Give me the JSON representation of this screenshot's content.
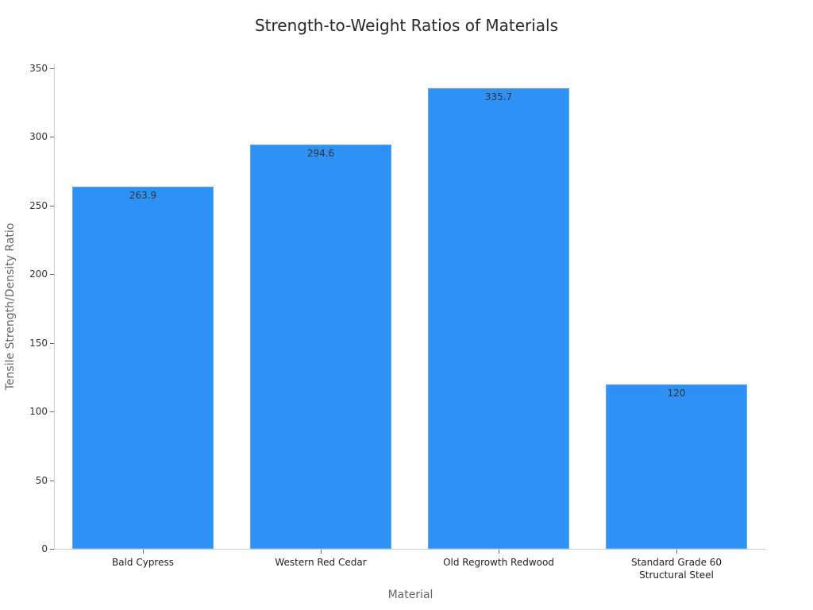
{
  "chart_data": {
    "type": "bar",
    "title": "Strength-to-Weight Ratios of Materials",
    "xlabel": "Material",
    "ylabel": "Tensile Strength/Density Ratio",
    "categories": [
      "Bald Cypress",
      "Western Red Cedar",
      "Old Regrowth Redwood",
      "Standard Grade 60 Structural Steel"
    ],
    "category_lines": [
      [
        "Bald Cypress"
      ],
      [
        "Western Red Cedar"
      ],
      [
        "Old Regrowth Redwood"
      ],
      [
        "Standard Grade 60",
        "Structural Steel"
      ]
    ],
    "values": [
      263.9,
      294.6,
      335.7,
      120
    ],
    "value_labels": [
      "263.9",
      "294.6",
      "335.7",
      "120"
    ],
    "ylim": [
      0,
      350
    ],
    "yticks": [
      "0",
      "50",
      "100",
      "150",
      "200",
      "250",
      "300",
      "350"
    ],
    "bar_color": "#2e91f5",
    "grid": false,
    "legend": null
  }
}
